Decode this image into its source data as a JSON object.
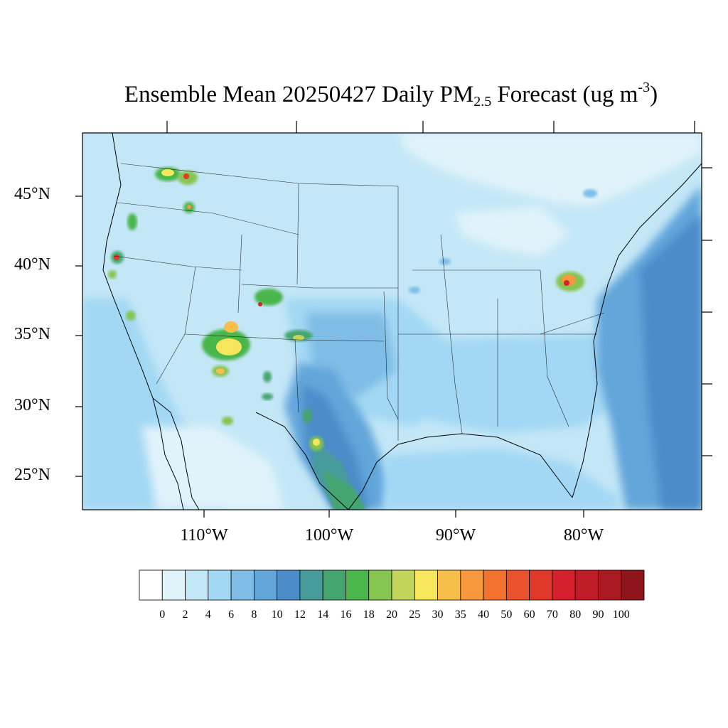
{
  "title": {
    "prefix": "Ensemble Mean 20250427 Daily PM",
    "subscript": "2.5",
    "middle": " Forecast (ug m",
    "superscript": "-3",
    "suffix": ")"
  },
  "lat_labels": [
    "45°N",
    "40°N",
    "35°N",
    "30°N",
    "25°N"
  ],
  "lon_labels": [
    "110°W",
    "100°W",
    "90°W",
    "80°W"
  ],
  "colorbar": {
    "labels": [
      "0",
      "2",
      "4",
      "6",
      "8",
      "10",
      "12",
      "14",
      "16",
      "18",
      "20",
      "25",
      "30",
      "35",
      "40",
      "50",
      "60",
      "70",
      "80",
      "90",
      "100"
    ],
    "colors": [
      "#ffffff",
      "#e0f3fb",
      "#c4e7f7",
      "#a3d8f4",
      "#80bde6",
      "#62a6da",
      "#4b8cc9",
      "#479b9a",
      "#45a56f",
      "#4ab64b",
      "#86c54f",
      "#c2d55a",
      "#f5e65b",
      "#f8be4a",
      "#f8983e",
      "#f3722e",
      "#ea522d",
      "#e0392a",
      "#d4212d",
      "#be1c27",
      "#a91a22",
      "#8e151b"
    ]
  },
  "map_colors": {
    "background": "#c4e7f7",
    "ocean_east": "#62a6da",
    "ocean_deep": "#4b8cc9",
    "light_north": "#e0f3fb"
  }
}
